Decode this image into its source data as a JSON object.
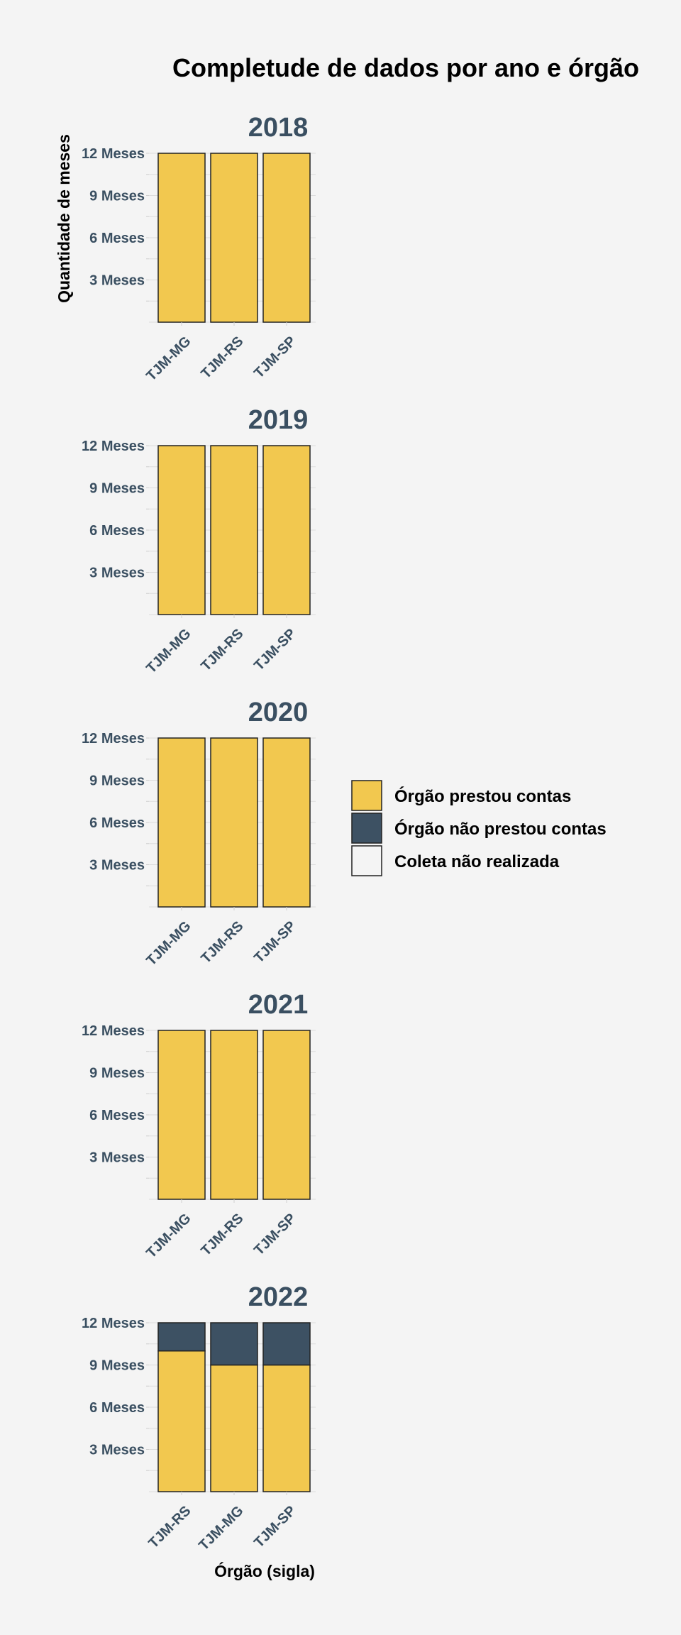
{
  "chart_data": {
    "type": "bar",
    "stacked": true,
    "title": "Completude de dados por ano e órgão",
    "xlabel": "Órgão (sigla)",
    "ylabel": "Quantidade de meses",
    "ylim": [
      0,
      12
    ],
    "yticks": [
      3,
      6,
      9,
      12
    ],
    "ytick_labels": [
      "3 Meses",
      "6 Meses",
      "9 Meses",
      "12 Meses"
    ],
    "grid": true,
    "legend_position": "right",
    "legend": [
      {
        "label": "Órgão prestou contas",
        "color": "#f2c84f"
      },
      {
        "label": "Órgão não prestou contas",
        "color": "#3d5163"
      },
      {
        "label": "Coleta não realizada",
        "color": "#f4f4f4"
      }
    ],
    "facets": [
      {
        "year": "2018",
        "categories": [
          "TJM-MG",
          "TJM-RS",
          "TJM-SP"
        ],
        "series": [
          {
            "name": "Órgão prestou contas",
            "values": [
              12,
              12,
              12
            ]
          },
          {
            "name": "Órgão não prestou contas",
            "values": [
              0,
              0,
              0
            ]
          }
        ]
      },
      {
        "year": "2019",
        "categories": [
          "TJM-MG",
          "TJM-RS",
          "TJM-SP"
        ],
        "series": [
          {
            "name": "Órgão prestou contas",
            "values": [
              12,
              12,
              12
            ]
          },
          {
            "name": "Órgão não prestou contas",
            "values": [
              0,
              0,
              0
            ]
          }
        ]
      },
      {
        "year": "2020",
        "categories": [
          "TJM-MG",
          "TJM-RS",
          "TJM-SP"
        ],
        "series": [
          {
            "name": "Órgão prestou contas",
            "values": [
              12,
              12,
              12
            ]
          },
          {
            "name": "Órgão não prestou contas",
            "values": [
              0,
              0,
              0
            ]
          }
        ]
      },
      {
        "year": "2021",
        "categories": [
          "TJM-MG",
          "TJM-RS",
          "TJM-SP"
        ],
        "series": [
          {
            "name": "Órgão prestou contas",
            "values": [
              12,
              12,
              12
            ]
          },
          {
            "name": "Órgão não prestou contas",
            "values": [
              0,
              0,
              0
            ]
          }
        ]
      },
      {
        "year": "2022",
        "categories": [
          "TJM-RS",
          "TJM-MG",
          "TJM-SP"
        ],
        "series": [
          {
            "name": "Órgão prestou contas",
            "values": [
              10,
              9,
              9
            ]
          },
          {
            "name": "Órgão não prestou contas",
            "values": [
              2,
              3,
              3
            ]
          }
        ]
      }
    ]
  }
}
